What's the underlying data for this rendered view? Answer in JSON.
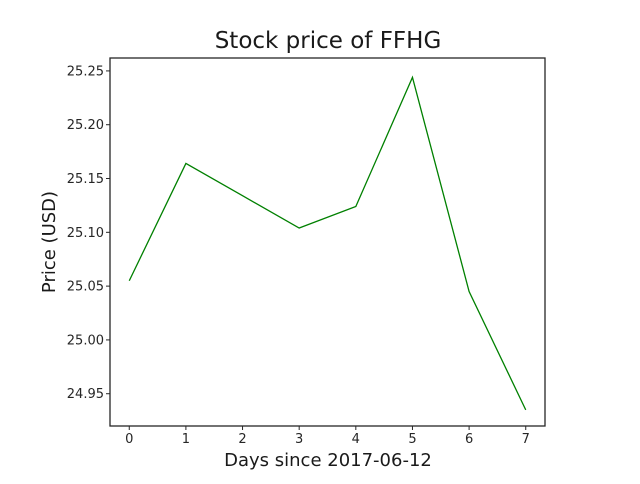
{
  "chart_data": {
    "type": "line",
    "title": "Stock price of FFHG",
    "xlabel": "Days since 2017-06-12",
    "ylabel": "Price (USD)",
    "x": [
      0,
      1,
      2,
      3,
      4,
      5,
      6,
      7
    ],
    "xticks": [
      "0",
      "1",
      "2",
      "3",
      "4",
      "5",
      "6",
      "7"
    ],
    "yticks": [
      "24.95",
      "25.00",
      "25.05",
      "25.10",
      "25.15",
      "25.20",
      "25.25"
    ],
    "xlim": [
      -0.34,
      7.34
    ],
    "ylim": [
      24.92,
      25.262
    ],
    "grid": false,
    "series": [
      {
        "color": "#008000",
        "values": [
          25.055,
          25.164,
          25.134,
          25.104,
          25.124,
          25.244,
          25.045,
          24.935
        ]
      }
    ]
  }
}
